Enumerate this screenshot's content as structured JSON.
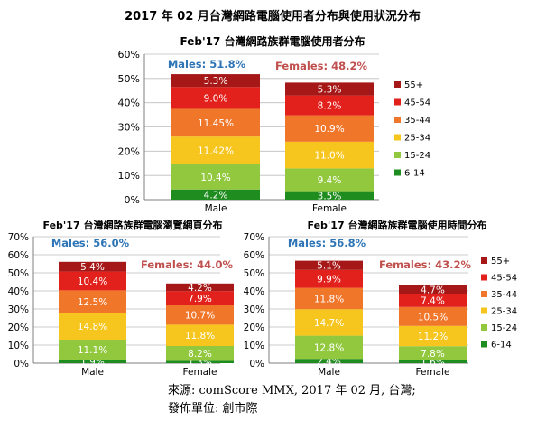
{
  "main_title": "2017 年 02 月台灣網路電腦使用者分布與使用狀況分布",
  "age_groups": [
    "6-14",
    "15-24",
    "25-34",
    "35-44",
    "45-54",
    "55+"
  ],
  "colors": {
    "6-14": "#1e8c1e",
    "15-24": "#92c83e",
    "25-34": "#f6c51e",
    "35-44": "#f0762a",
    "45-54": "#e3211c",
    "55+": "#a51817",
    "males_label": "#2e75b6",
    "females_label": "#c0504d"
  },
  "source": {
    "line1": "來源: comScore MMX, 2017 年 02 月, 台灣;",
    "line2": "發佈單位: 創市際"
  },
  "chart_data": [
    {
      "type": "bar",
      "stacked": true,
      "title": "Feb'17 台灣網路族群電腦使用者分布",
      "categories": [
        "Male",
        "Female"
      ],
      "ylim": [
        0,
        60
      ],
      "yticks": [
        "0%",
        "10%",
        "20%",
        "30%",
        "40%",
        "50%",
        "60%"
      ],
      "series": [
        {
          "name": "6-14",
          "values": [
            4.2,
            3.5
          ],
          "labels": [
            "4.2%",
            "3.5%"
          ]
        },
        {
          "name": "15-24",
          "values": [
            10.4,
            9.4
          ],
          "labels": [
            "10.4%",
            "9.4%"
          ]
        },
        {
          "name": "25-34",
          "values": [
            11.42,
            11.0
          ],
          "labels": [
            "11.42%",
            "11.0%"
          ]
        },
        {
          "name": "35-44",
          "values": [
            11.45,
            10.9
          ],
          "labels": [
            "11.45%",
            "10.9%"
          ]
        },
        {
          "name": "45-54",
          "values": [
            9.0,
            8.2
          ],
          "labels": [
            "9.0%",
            "8.2%"
          ]
        },
        {
          "name": "55+",
          "values": [
            5.3,
            5.3
          ],
          "labels": [
            "5.3%",
            "5.3%"
          ]
        }
      ],
      "totals": [
        "Males: 51.8%",
        "Females: 48.2%"
      ],
      "legend": "right"
    },
    {
      "type": "bar",
      "stacked": true,
      "title": "Feb'17 台灣網路族群電腦瀏覽網頁分布",
      "categories": [
        "Male",
        "Female"
      ],
      "ylim": [
        0,
        70
      ],
      "yticks": [
        "0%",
        "10%",
        "20%",
        "30%",
        "40%",
        "50%",
        "60%",
        "70%"
      ],
      "series": [
        {
          "name": "6-14",
          "values": [
            1.9,
            1.3
          ],
          "labels": [
            "1.9%",
            "1.3%"
          ]
        },
        {
          "name": "15-24",
          "values": [
            11.1,
            8.2
          ],
          "labels": [
            "11.1%",
            "8.2%"
          ]
        },
        {
          "name": "25-34",
          "values": [
            14.8,
            11.8
          ],
          "labels": [
            "14.8%",
            "11.8%"
          ]
        },
        {
          "name": "35-44",
          "values": [
            12.5,
            10.7
          ],
          "labels": [
            "12.5%",
            "10.7%"
          ]
        },
        {
          "name": "45-54",
          "values": [
            10.4,
            7.9
          ],
          "labels": [
            "10.4%",
            "7.9%"
          ]
        },
        {
          "name": "55+",
          "values": [
            5.4,
            4.2
          ],
          "labels": [
            "5.4%",
            "4.2%"
          ]
        }
      ],
      "totals": [
        "Males: 56.0%",
        "Females: 44.0%"
      ],
      "legend": "none"
    },
    {
      "type": "bar",
      "stacked": true,
      "title": "Feb'17 台灣網路族群電腦使用時間分布",
      "categories": [
        "Male",
        "Female"
      ],
      "ylim": [
        0,
        70
      ],
      "yticks": [
        "0%",
        "10%",
        "20%",
        "30%",
        "40%",
        "50%",
        "60%",
        "70%"
      ],
      "series": [
        {
          "name": "6-14",
          "values": [
            2.4,
            1.6
          ],
          "labels": [
            "2.4%",
            "1.6%"
          ]
        },
        {
          "name": "15-24",
          "values": [
            12.8,
            7.8
          ],
          "labels": [
            "12.8%",
            "7.8%"
          ]
        },
        {
          "name": "25-34",
          "values": [
            14.7,
            11.2
          ],
          "labels": [
            "14.7%",
            "11.2%"
          ]
        },
        {
          "name": "35-44",
          "values": [
            11.8,
            10.5
          ],
          "labels": [
            "11.8%",
            "10.5%"
          ]
        },
        {
          "name": "45-54",
          "values": [
            9.9,
            7.4
          ],
          "labels": [
            "9.9%",
            "7.4%"
          ]
        },
        {
          "name": "55+",
          "values": [
            5.1,
            4.7
          ],
          "labels": [
            "5.1%",
            "4.7%"
          ]
        }
      ],
      "totals": [
        "Males: 56.8%",
        "Females: 43.2%"
      ],
      "legend": "right"
    }
  ]
}
